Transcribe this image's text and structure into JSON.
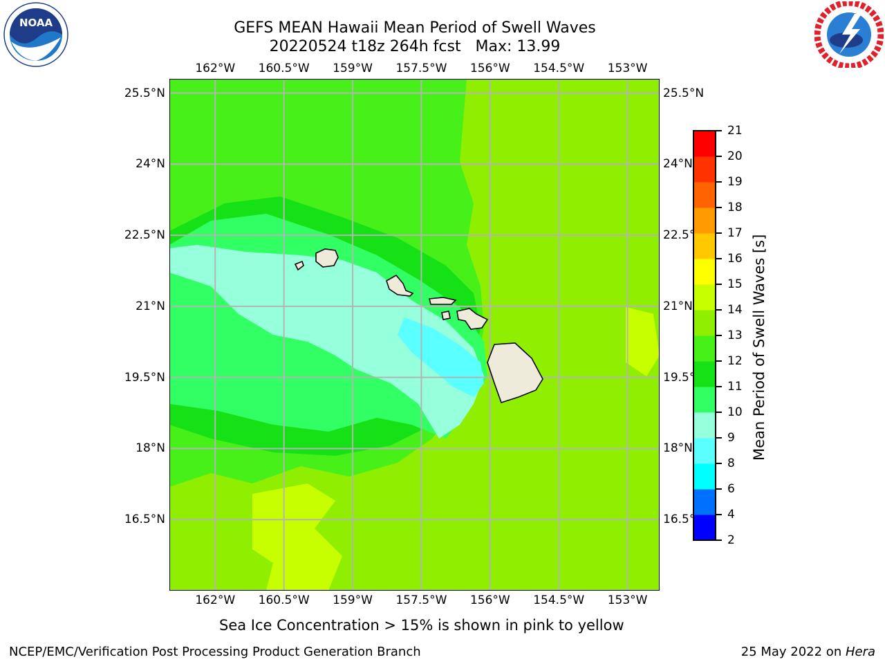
{
  "title": {
    "line1": "GEFS MEAN Hawaii Mean Period of Swell Waves",
    "line2": "20220524 t18z 264h fcst   Max: 13.99"
  },
  "logos": {
    "left": {
      "icon": "noaa-logo-icon",
      "text": "NOAA",
      "ring_text": "NATIONAL OCEANIC AND ATMOSPHERIC ADMINISTRATION · U.S. DEPARTMENT OF COMMERCE"
    },
    "right": {
      "icon": "nws-logo-icon",
      "ring_text": "NATIONAL WEATHER SERVICE"
    }
  },
  "map": {
    "lon_ticks": [
      "162°W",
      "160.5°W",
      "159°W",
      "157.5°W",
      "156°W",
      "154.5°W",
      "153°W"
    ],
    "lat_ticks": [
      "25.5°N",
      "24°N",
      "22.5°N",
      "21°N",
      "19.5°N",
      "18°N",
      "16.5°N"
    ],
    "lon_values": [
      -162,
      -160.5,
      -159,
      -157.5,
      -156,
      -154.5,
      -153
    ],
    "lat_values": [
      25.5,
      24,
      22.5,
      21,
      19.5,
      18,
      16.5
    ],
    "lon_range": [
      -163,
      -152.3
    ],
    "lat_range": [
      15,
      25.8
    ],
    "grid": true
  },
  "colorbar": {
    "title": "Mean Period of Swell Waves [s]",
    "levels": [
      "2",
      "4",
      "6",
      "8",
      "9",
      "10",
      "11",
      "12",
      "13",
      "14",
      "15",
      "16",
      "17",
      "18",
      "19",
      "20",
      "21"
    ],
    "colors": [
      "#0000ff",
      "#0070ff",
      "#00ffff",
      "#5affff",
      "#96ffdc",
      "#32ff64",
      "#16e016",
      "#47f019",
      "#90ef00",
      "#c8ff00",
      "#ffff00",
      "#ffc800",
      "#ff9b00",
      "#ff6400",
      "#ff3200",
      "#ff0000"
    ]
  },
  "note": "Sea Ice Concentration > 15% is shown in pink to yellow",
  "footer": {
    "left": "NCEP/EMC/Verification Post Processing Product Generation Branch",
    "right_prefix": "25 May 2022 on ",
    "right_host": "Hera"
  }
}
